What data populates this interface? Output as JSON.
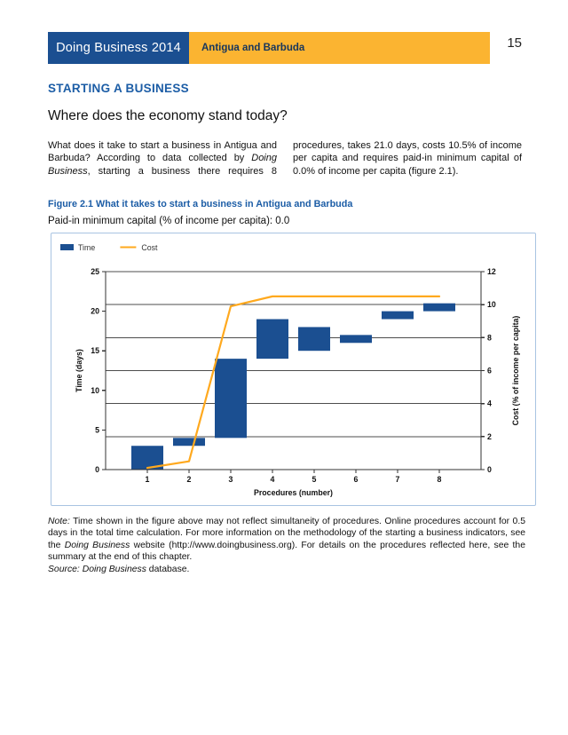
{
  "page": {
    "number": "15"
  },
  "header": {
    "brand": "Doing Business 2014",
    "country": "Antigua and Barbuda",
    "brand_bg": "#1B4F91",
    "country_bg": "#FBB431"
  },
  "section": {
    "title": "STARTING A BUSINESS",
    "subtitle": "Where does the economy stand today?"
  },
  "intro": {
    "col1_segments": [
      {
        "t": "What does it take to start a business in Antigua and Barbuda? According to data collected by ",
        "i": false
      },
      {
        "t": "Doing Business",
        "i": true
      },
      {
        "t": ", starting a business there requires 8",
        "i": false
      }
    ],
    "col2_segments": [
      {
        "t": "procedures, takes 21.0 days, costs 10.5% of income per capita and requires paid-in minimum capital of 0.0% of income per capita (figure 2.1).",
        "i": false
      }
    ]
  },
  "figure": {
    "title": "Figure 2.1 What it takes to start a business in Antigua and Barbuda",
    "subtitle": "Paid-in minimum capital (% of income per capita): 0.0"
  },
  "chart_data": {
    "type": "bar",
    "subtype": "floating-bars-with-cumulative-cost-line",
    "categories": [
      "1",
      "2",
      "3",
      "4",
      "5",
      "6",
      "7",
      "8"
    ],
    "xlabel": "Procedures (number)",
    "left_axis": {
      "label": "Time (days)",
      "min": 0,
      "max": 25,
      "ticks": [
        0,
        5,
        10,
        15,
        20,
        25
      ]
    },
    "right_axis": {
      "label": "Cost (% of income per capita)",
      "min": 0,
      "max": 12,
      "ticks": [
        0,
        2,
        4,
        6,
        8,
        10,
        12
      ]
    },
    "gridlines_right_values": [
      2,
      4,
      6,
      8,
      10,
      12
    ],
    "series": [
      {
        "name": "Time",
        "kind": "bar",
        "axis": "left",
        "color": "#1B4F91",
        "bar_ranges": [
          [
            0,
            3
          ],
          [
            3,
            4
          ],
          [
            4,
            14
          ],
          [
            14,
            19
          ],
          [
            15,
            18
          ],
          [
            16,
            17
          ],
          [
            19,
            20
          ],
          [
            20,
            21
          ]
        ]
      },
      {
        "name": "Cost",
        "kind": "line",
        "axis": "right",
        "color": "#FFA91E",
        "values": [
          0.1,
          0.5,
          9.9,
          10.5,
          10.5,
          10.5,
          10.5,
          10.5
        ]
      }
    ],
    "legend": {
      "position": "top-left",
      "entries": [
        {
          "label": "Time",
          "swatch": "bar",
          "color": "#1B4F91"
        },
        {
          "label": "Cost",
          "swatch": "line",
          "color": "#FFA91E"
        }
      ]
    }
  },
  "note": {
    "body_segments": [
      {
        "t": "Note:",
        "i": true
      },
      {
        "t": " Time shown in the figure above may not reflect simultaneity of procedures. Online procedures account for 0.5 days in the total time calculation. For more information on the methodology of the starting a business indicators, see the ",
        "i": false
      },
      {
        "t": "Doing Business",
        "i": true
      },
      {
        "t": " website (http://www.doingbusiness.org). For details on the procedures reflected here, see the summary at the end of this chapter.",
        "i": false
      }
    ],
    "source_segments": [
      {
        "t": "Source: ",
        "i": true
      },
      {
        "t": "Doing Business",
        "i": true
      },
      {
        "t": " database.",
        "i": false
      }
    ]
  }
}
